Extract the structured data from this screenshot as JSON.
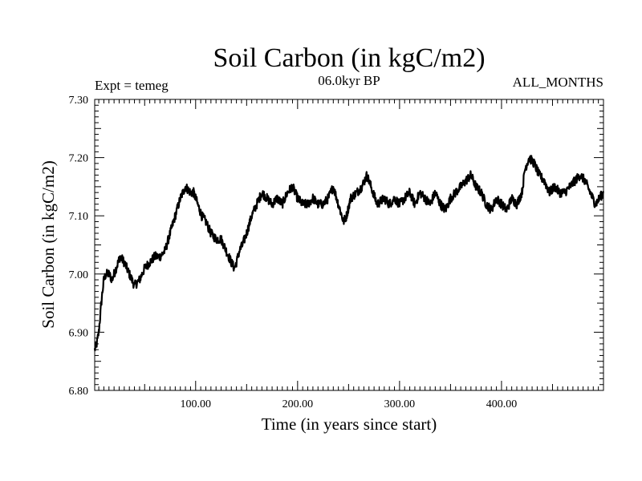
{
  "chart_data": {
    "type": "line",
    "title": "Soil Carbon (in kgC/m2)",
    "subtitle": "06.0kyr BP",
    "experiment": "Expt = temeg",
    "season": "ALL_MONTHS",
    "xlabel": "Time (in years since start)",
    "ylabel": "Soil Carbon (in kgC/m2)",
    "xlim": [
      1,
      500
    ],
    "ylim": [
      6.8,
      7.3
    ],
    "x_ticks": [
      100,
      200,
      300,
      400
    ],
    "x_tick_labels": [
      "100.00",
      "200.00",
      "300.00",
      "400.00"
    ],
    "y_ticks": [
      6.8,
      6.9,
      7.0,
      7.1,
      7.2,
      7.3
    ],
    "y_tick_labels": [
      "6.80",
      "6.90",
      "7.00",
      "7.10",
      "7.20",
      "7.30"
    ],
    "grid": false,
    "series": [
      {
        "name": "Soil Carbon",
        "color": "#000000",
        "x": [
          1,
          3,
          5,
          8,
          10,
          12,
          15,
          18,
          22,
          26,
          30,
          35,
          40,
          45,
          50,
          55,
          60,
          65,
          70,
          75,
          80,
          85,
          90,
          95,
          98,
          102,
          106,
          110,
          115,
          120,
          125,
          130,
          135,
          138,
          140,
          143,
          146,
          150,
          155,
          160,
          165,
          170,
          175,
          180,
          185,
          190,
          195,
          200,
          205,
          210,
          215,
          220,
          225,
          230,
          235,
          240,
          245,
          248,
          252,
          258,
          263,
          268,
          272,
          278,
          285,
          290,
          295,
          300,
          305,
          310,
          315,
          320,
          325,
          330,
          335,
          340,
          345,
          350,
          355,
          360,
          365,
          370,
          375,
          380,
          385,
          390,
          395,
          400,
          405,
          410,
          415,
          420,
          423,
          427,
          432,
          437,
          442,
          447,
          452,
          457,
          462,
          467,
          472,
          477,
          482,
          487,
          492,
          496,
          500
        ],
        "values": [
          6.87,
          6.88,
          6.9,
          6.96,
          6.99,
          7.0,
          7.0,
          6.99,
          7.01,
          7.03,
          7.02,
          7.0,
          6.98,
          6.99,
          7.01,
          7.02,
          7.03,
          7.03,
          7.04,
          7.07,
          7.1,
          7.13,
          7.15,
          7.14,
          7.14,
          7.12,
          7.1,
          7.09,
          7.07,
          7.06,
          7.06,
          7.04,
          7.02,
          7.01,
          7.02,
          7.04,
          7.05,
          7.07,
          7.1,
          7.12,
          7.14,
          7.13,
          7.12,
          7.13,
          7.12,
          7.14,
          7.15,
          7.13,
          7.12,
          7.12,
          7.13,
          7.12,
          7.12,
          7.13,
          7.15,
          7.12,
          7.09,
          7.1,
          7.13,
          7.14,
          7.15,
          7.17,
          7.15,
          7.12,
          7.13,
          7.12,
          7.13,
          7.12,
          7.13,
          7.14,
          7.12,
          7.14,
          7.13,
          7.12,
          7.14,
          7.12,
          7.11,
          7.13,
          7.14,
          7.15,
          7.16,
          7.17,
          7.15,
          7.14,
          7.12,
          7.11,
          7.13,
          7.12,
          7.11,
          7.13,
          7.12,
          7.14,
          7.18,
          7.2,
          7.19,
          7.17,
          7.16,
          7.14,
          7.15,
          7.14,
          7.14,
          7.15,
          7.16,
          7.17,
          7.16,
          7.14,
          7.12,
          7.13,
          7.14
        ]
      }
    ]
  }
}
